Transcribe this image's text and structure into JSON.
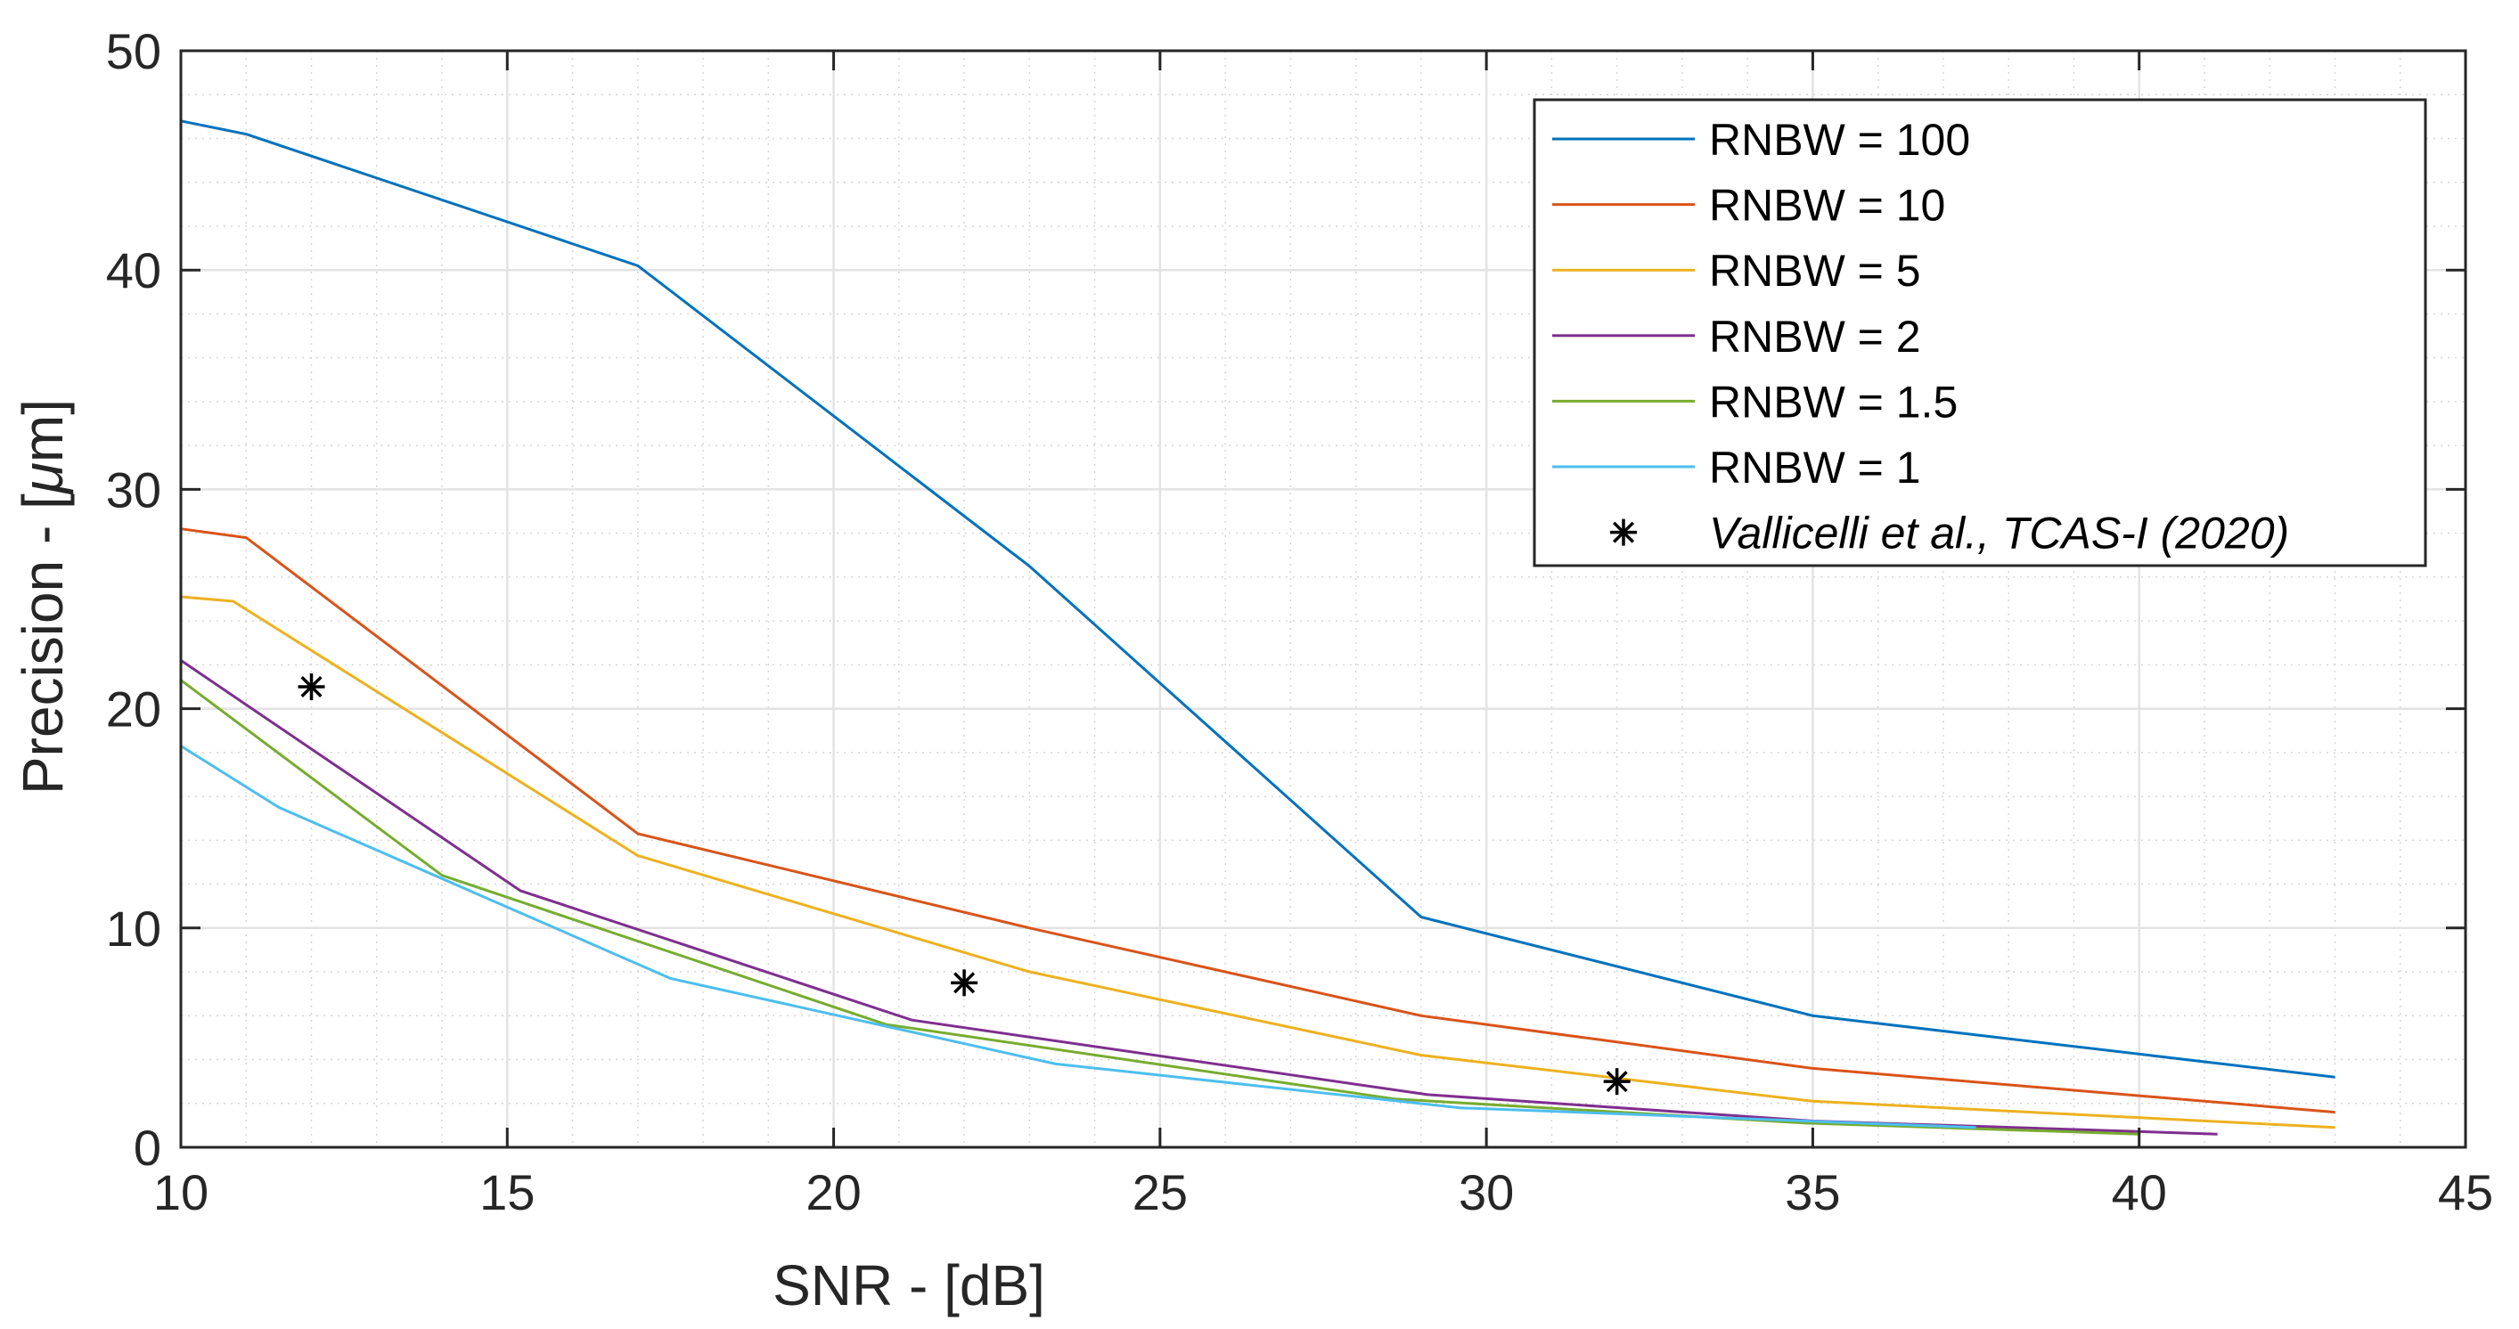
{
  "chart_data": {
    "type": "line",
    "title": "",
    "xlabel": "SNR - [dB]",
    "ylabel": "Precision - [",
    "ylabel_symbol": "μ",
    "ylabel_unit": "m]",
    "xlim": [
      10,
      45
    ],
    "ylim": [
      0,
      50
    ],
    "x_ticks": [
      "10",
      "15",
      "20",
      "25",
      "30",
      "35",
      "40",
      "45"
    ],
    "y_ticks": [
      "0",
      "10",
      "20",
      "30",
      "40",
      "50"
    ],
    "grid": true,
    "minor_grid": true,
    "legend_placement": "top-right",
    "series": [
      {
        "name": "RNBW = 100",
        "color": "#0072BD",
        "x": [
          10,
          11,
          17,
          23,
          29,
          35,
          43
        ],
        "y": [
          46.8,
          46.2,
          40.2,
          26.5,
          10.5,
          6.0,
          3.2
        ]
      },
      {
        "name": "RNBW = 10",
        "color": "#D95319",
        "x": [
          10,
          11,
          17,
          23,
          29,
          35,
          43
        ],
        "y": [
          28.2,
          27.8,
          14.3,
          10.0,
          6.0,
          3.6,
          1.6
        ]
      },
      {
        "name": "RNBW = 5",
        "color": "#EDB120",
        "x": [
          10,
          10.8,
          17,
          23,
          29,
          35,
          43
        ],
        "y": [
          25.1,
          24.9,
          13.3,
          8.0,
          4.2,
          2.1,
          0.9
        ]
      },
      {
        "name": "RNBW = 2",
        "color": "#7E2F8E",
        "x": [
          10,
          15.2,
          21.2,
          29.1,
          35,
          41.2
        ],
        "y": [
          22.2,
          11.7,
          5.8,
          2.4,
          1.2,
          0.6
        ]
      },
      {
        "name": "RNBW = 1.5",
        "color": "#77AC30",
        "x": [
          10,
          14,
          20.8,
          28.6,
          34.9,
          40
        ],
        "y": [
          21.3,
          12.4,
          5.6,
          2.2,
          1.1,
          0.6
        ]
      },
      {
        "name": "RNBW = 1",
        "color": "#4DBEEE",
        "x": [
          10,
          11.5,
          17.5,
          23.4,
          29.6,
          37.5
        ],
        "y": [
          18.3,
          15.5,
          7.7,
          3.8,
          1.8,
          0.9
        ]
      }
    ],
    "scatter_series": {
      "name": "Vallicelli et al., TCAS-I (2020)",
      "color": "#000000",
      "x": [
        12,
        22,
        32
      ],
      "y": [
        21,
        7.5,
        3
      ]
    }
  }
}
